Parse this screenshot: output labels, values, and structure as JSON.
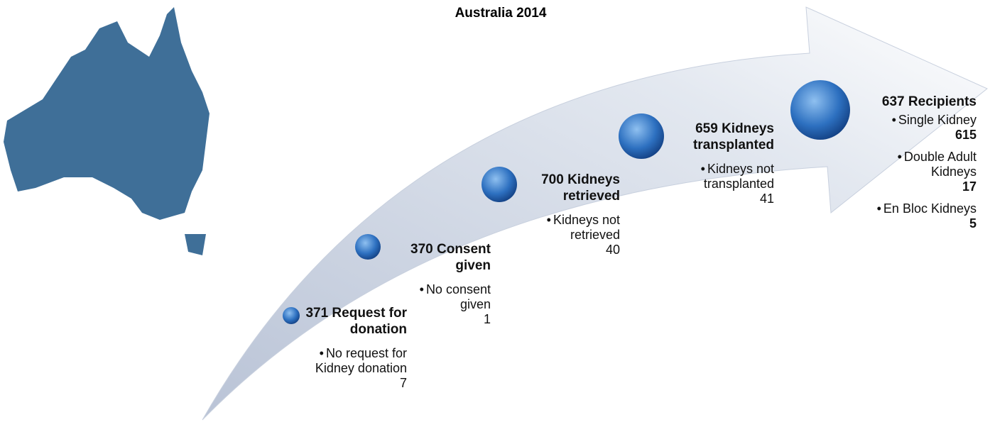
{
  "title": "Australia 2014",
  "stages": [
    {
      "heading": "371 Request for donation",
      "notes": [
        "No request for Kidney donation",
        "7"
      ]
    },
    {
      "heading": "370 Consent given",
      "notes": [
        "No consent given",
        "1"
      ]
    },
    {
      "heading": "700 Kidneys retrieved",
      "notes": [
        "Kidneys not retrieved",
        "40"
      ]
    },
    {
      "heading": "659 Kidneys transplanted",
      "notes": [
        "Kidneys not transplanted",
        "41"
      ]
    },
    {
      "heading": "637 Recipients",
      "items": [
        {
          "label": "Single Kidney",
          "count": "615"
        },
        {
          "label": "Double Adult Kidneys",
          "count": "17"
        },
        {
          "label": "En Bloc Kidneys",
          "count": "5"
        }
      ]
    }
  ]
}
